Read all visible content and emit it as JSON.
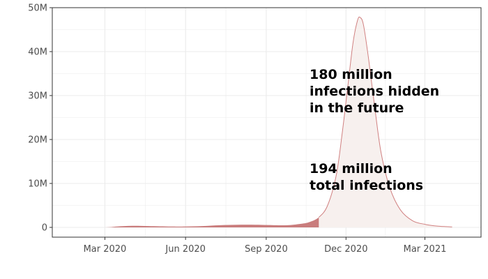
{
  "chart_data": {
    "type": "area",
    "title": "",
    "xlabel": "",
    "ylabel": "",
    "ylim": [
      0,
      50000000
    ],
    "y_ticks": [
      {
        "value": 0,
        "label": "0"
      },
      {
        "value": 10000000,
        "label": "10M"
      },
      {
        "value": 20000000,
        "label": "20M"
      },
      {
        "value": 30000000,
        "label": "30M"
      },
      {
        "value": 40000000,
        "label": "40M"
      },
      {
        "value": 50000000,
        "label": "50M"
      }
    ],
    "x_ticks": [
      {
        "value": "2020-03-01",
        "label": "Mar 2020"
      },
      {
        "value": "2020-06-01",
        "label": "Jun 2020"
      },
      {
        "value": "2020-09-01",
        "label": "Sep 2020"
      },
      {
        "value": "2020-12-01",
        "label": "Dec 2020"
      },
      {
        "value": "2021-03-01",
        "label": "Mar 2021"
      }
    ],
    "xlim": [
      "2020-01-01",
      "2021-05-04"
    ],
    "grid": true,
    "colors": {
      "past_fill": "#c97c7c",
      "future_fill": "#f7f0ee",
      "future_line": "#d08080",
      "grid": "#ebebeb",
      "axis": "#333333"
    },
    "split_date": "2020-10-31",
    "series": [
      {
        "values": [
          {
            "x": "2020-01-10",
            "y": 0
          },
          {
            "x": "2020-02-01",
            "y": 0
          },
          {
            "x": "2020-03-01",
            "y": 0
          },
          {
            "x": "2020-03-15",
            "y": 200000
          },
          {
            "x": "2020-04-01",
            "y": 350000
          },
          {
            "x": "2020-04-20",
            "y": 300000
          },
          {
            "x": "2020-05-15",
            "y": 200000
          },
          {
            "x": "2020-06-01",
            "y": 200000
          },
          {
            "x": "2020-06-20",
            "y": 300000
          },
          {
            "x": "2020-07-10",
            "y": 500000
          },
          {
            "x": "2020-07-30",
            "y": 600000
          },
          {
            "x": "2020-08-20",
            "y": 600000
          },
          {
            "x": "2020-09-10",
            "y": 500000
          },
          {
            "x": "2020-09-25",
            "y": 500000
          },
          {
            "x": "2020-10-10",
            "y": 800000
          },
          {
            "x": "2020-10-20",
            "y": 1200000
          },
          {
            "x": "2020-10-31",
            "y": 2300000
          },
          {
            "x": "2020-11-10",
            "y": 5000000
          },
          {
            "x": "2020-11-20",
            "y": 12000000
          },
          {
            "x": "2020-11-27",
            "y": 22000000
          },
          {
            "x": "2020-12-03",
            "y": 32000000
          },
          {
            "x": "2020-12-09",
            "y": 42000000
          },
          {
            "x": "2020-12-14",
            "y": 47000000
          },
          {
            "x": "2020-12-17",
            "y": 47800000
          },
          {
            "x": "2020-12-21",
            "y": 46000000
          },
          {
            "x": "2020-12-27",
            "y": 38000000
          },
          {
            "x": "2021-01-03",
            "y": 27000000
          },
          {
            "x": "2021-01-10",
            "y": 17000000
          },
          {
            "x": "2021-01-20",
            "y": 9000000
          },
          {
            "x": "2021-02-01",
            "y": 4000000
          },
          {
            "x": "2021-02-15",
            "y": 1500000
          },
          {
            "x": "2021-03-01",
            "y": 700000
          },
          {
            "x": "2021-03-15",
            "y": 300000
          },
          {
            "x": "2021-04-01",
            "y": 100000
          }
        ]
      }
    ],
    "annotations": [
      {
        "id": "future",
        "lines": [
          "180 million",
          "infections hidden",
          "in the future"
        ]
      },
      {
        "id": "total",
        "lines": [
          "194 million",
          "total infections"
        ]
      }
    ]
  }
}
